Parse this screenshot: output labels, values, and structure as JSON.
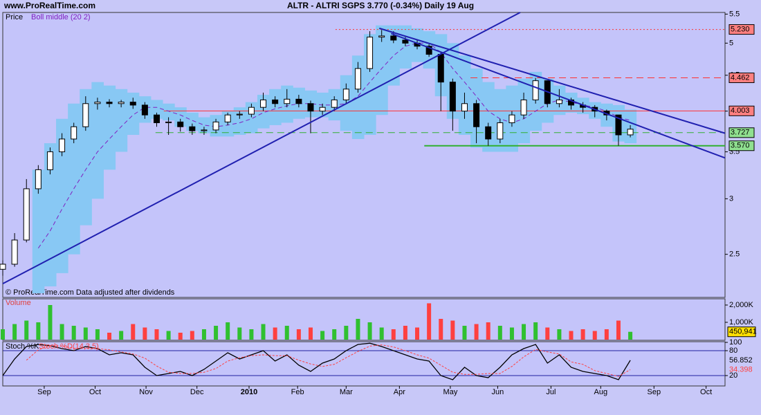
{
  "header": {
    "site": "www.ProRealTime.com",
    "footnote": "© ProRealTime.com Data adjusted after dividends"
  },
  "chart_data": [
    {
      "type": "candlestick",
      "title": "ALTR - ALTRI SGPS   3.770 (-0.34%)   Daily  19 Aug",
      "legend": [
        "Price",
        "Boll middle (20 2)"
      ],
      "log_scale": true,
      "ylim": [
        2.17,
        5.53
      ],
      "yticks": [
        2.5,
        3,
        3.5,
        4,
        4.5,
        5,
        5.5
      ],
      "x": [
        0,
        1,
        2,
        3,
        4,
        5,
        6,
        7,
        8,
        9,
        10,
        11,
        12,
        13,
        14,
        15,
        16,
        17,
        18,
        19,
        20,
        21,
        22,
        23,
        24,
        25,
        26,
        27,
        28,
        29,
        30,
        31,
        32,
        33,
        34,
        35,
        36,
        37,
        38,
        39,
        40,
        41,
        42,
        43,
        44,
        45,
        46,
        47,
        48,
        49,
        50,
        51,
        52,
        53
      ],
      "open": [
        2.38,
        2.42,
        2.62,
        3.1,
        3.3,
        3.5,
        3.65,
        3.8,
        4.1,
        4.12,
        4.1,
        4.12,
        4.08,
        3.95,
        3.85,
        3.86,
        3.8,
        3.75,
        3.76,
        3.86,
        3.95,
        3.96,
        4.05,
        4.15,
        4.1,
        4.16,
        4.1,
        4.0,
        4.05,
        4.15,
        4.3,
        4.6,
        5.1,
        5.12,
        5.05,
        5.0,
        4.95,
        4.82,
        4.4,
        4.0,
        4.1,
        3.8,
        3.65,
        3.85,
        3.95,
        4.15,
        4.42,
        4.1,
        4.15,
        4.08,
        4.05,
        4.0,
        3.95,
        3.7
      ],
      "high": [
        2.45,
        2.68,
        3.2,
        3.35,
        3.55,
        3.72,
        3.85,
        4.2,
        4.18,
        4.16,
        4.15,
        4.18,
        4.12,
        3.98,
        3.92,
        3.9,
        3.84,
        3.8,
        3.9,
        3.98,
        4.0,
        4.1,
        4.25,
        4.2,
        4.3,
        4.22,
        4.14,
        4.1,
        4.2,
        4.38,
        4.7,
        5.2,
        5.22,
        5.2,
        5.1,
        5.05,
        4.98,
        4.85,
        4.45,
        4.25,
        4.15,
        3.85,
        3.9,
        4.0,
        4.25,
        4.46,
        4.4,
        4.3,
        4.18,
        4.12,
        4.08,
        4.02,
        3.95,
        3.82
      ],
      "low": [
        2.33,
        2.4,
        2.6,
        3.05,
        3.25,
        3.45,
        3.6,
        3.75,
        4.02,
        4.05,
        4.05,
        4.03,
        3.9,
        3.8,
        3.7,
        3.74,
        3.7,
        3.7,
        3.72,
        3.82,
        3.9,
        3.92,
        4.0,
        4.05,
        4.05,
        4.05,
        3.72,
        3.95,
        4.0,
        4.1,
        4.25,
        4.55,
        5.02,
        5.0,
        4.95,
        4.9,
        4.78,
        4.0,
        3.75,
        3.9,
        3.6,
        3.57,
        3.6,
        3.8,
        3.9,
        4.1,
        4.05,
        4.05,
        4.02,
        3.98,
        3.92,
        3.88,
        3.57,
        3.67
      ],
      "close": [
        2.42,
        2.62,
        3.1,
        3.3,
        3.5,
        3.65,
        3.8,
        4.1,
        4.12,
        4.1,
        4.12,
        4.08,
        3.95,
        3.85,
        3.86,
        3.8,
        3.75,
        3.76,
        3.86,
        3.95,
        3.96,
        4.05,
        4.15,
        4.1,
        4.16,
        4.1,
        4.0,
        4.05,
        4.15,
        4.3,
        4.6,
        5.1,
        5.12,
        5.05,
        5.0,
        4.95,
        4.82,
        4.4,
        4.0,
        4.1,
        3.8,
        3.65,
        3.85,
        3.95,
        4.15,
        4.42,
        4.1,
        4.15,
        4.08,
        4.05,
        4.0,
        3.95,
        3.7,
        3.77
      ],
      "boll_upper": [
        null,
        null,
        null,
        3.3,
        3.6,
        3.9,
        4.1,
        4.3,
        4.4,
        4.35,
        4.3,
        4.25,
        4.2,
        4.15,
        4.1,
        4.05,
        3.98,
        3.92,
        3.95,
        4.0,
        4.05,
        4.12,
        4.22,
        4.3,
        4.35,
        4.32,
        4.28,
        4.25,
        4.3,
        4.5,
        4.8,
        5.15,
        5.3,
        5.3,
        5.3,
        5.25,
        5.2,
        5.15,
        5.0,
        4.8,
        4.6,
        4.4,
        4.3,
        4.35,
        4.45,
        4.55,
        4.45,
        4.35,
        4.25,
        4.18,
        4.12,
        4.1,
        4.08,
        4.02
      ],
      "boll_middle": [
        null,
        null,
        null,
        2.55,
        2.7,
        2.9,
        3.1,
        3.3,
        3.5,
        3.65,
        3.8,
        3.95,
        4.05,
        4.05,
        4.0,
        3.95,
        3.88,
        3.82,
        3.8,
        3.82,
        3.85,
        3.9,
        3.98,
        4.03,
        4.07,
        4.1,
        4.1,
        4.08,
        4.08,
        4.1,
        4.2,
        4.4,
        4.6,
        4.8,
        4.95,
        5.0,
        5.0,
        4.85,
        4.6,
        4.4,
        4.2,
        4.0,
        3.9,
        3.85,
        3.9,
        4.0,
        4.1,
        4.15,
        4.12,
        4.08,
        4.05,
        4.0,
        3.92,
        3.88
      ],
      "boll_lower": [
        null,
        null,
        null,
        2.2,
        2.25,
        2.35,
        2.5,
        2.75,
        3.0,
        3.3,
        3.5,
        3.7,
        3.85,
        3.9,
        3.88,
        3.8,
        3.75,
        3.72,
        3.68,
        3.68,
        3.7,
        3.72,
        3.78,
        3.82,
        3.85,
        3.9,
        3.92,
        3.92,
        3.88,
        3.75,
        3.65,
        3.7,
        3.95,
        4.35,
        4.6,
        4.7,
        4.6,
        4.2,
        3.9,
        3.7,
        3.55,
        3.5,
        3.5,
        3.5,
        3.6,
        3.75,
        3.85,
        3.95,
        3.98,
        3.96,
        3.9,
        3.8,
        3.62,
        3.6
      ],
      "levels": [
        {
          "value": 5.23,
          "label": "5.230",
          "color": "#ff3030",
          "style": "dotted",
          "from": 28.1
        },
        {
          "value": 4.462,
          "label": "4.462",
          "color": "#ff3030",
          "style": "dashed",
          "from": 39.5
        },
        {
          "value": 4.003,
          "label": "4.003",
          "color": "#ff3030",
          "style": "solid",
          "from": 13.6
        },
        {
          "value": 3.727,
          "label": "3.727",
          "color": "#30b030",
          "style": "dashed",
          "from": 12.9
        },
        {
          "value": 3.57,
          "label": "3.570",
          "color": "#30b030",
          "style": "solid",
          "from": 35.6
        }
      ],
      "trendlines": [
        {
          "x": [
            0,
            43.7
          ],
          "y": [
            2.27,
            5.53
          ]
        },
        {
          "x": [
            32.8,
            61
          ],
          "y": [
            5.16,
            3.43
          ]
        },
        {
          "x": [
            31.8,
            61
          ],
          "y": [
            5.25,
            3.72
          ]
        }
      ]
    },
    {
      "type": "bar",
      "legend": [
        "Volume"
      ],
      "ylim": [
        0,
        2360000
      ],
      "yticks": [
        {
          "value": 1000000,
          "label": "1,000K"
        },
        {
          "value": 2000000,
          "label": "2,000K"
        }
      ],
      "values": [
        600000,
        900000,
        1100000,
        1000000,
        2000000,
        900000,
        800000,
        700000,
        600000,
        400000,
        500000,
        900000,
        700000,
        600000,
        500000,
        400000,
        500000,
        600000,
        800000,
        1000000,
        700000,
        600000,
        900000,
        700000,
        800000,
        600000,
        700000,
        500000,
        600000,
        800000,
        1200000,
        1000000,
        700000,
        600000,
        800000,
        700000,
        2100000,
        1200000,
        1100000,
        800000,
        900000,
        1000000,
        800000,
        700000,
        900000,
        1000000,
        700000,
        600000,
        500000,
        600000,
        500000,
        600000,
        1100000,
        450941
      ],
      "last_value_label": "450,941",
      "colors": [
        "#30c030",
        "#ff4040"
      ]
    },
    {
      "type": "line",
      "ylim": [
        0,
        100
      ],
      "yticks": [
        20,
        80,
        100
      ],
      "xlim": [
        0,
        61
      ],
      "xticks": [
        {
          "value": 3.5,
          "label": "Sep"
        },
        {
          "value": 7.8,
          "label": "Oct"
        },
        {
          "value": 12.1,
          "label": "Nov"
        },
        {
          "value": 16.4,
          "label": "Dec"
        },
        {
          "value": 20.8,
          "label": "2010"
        },
        {
          "value": 24.9,
          "label": "Feb"
        },
        {
          "value": 29,
          "label": "Mar"
        },
        {
          "value": 33.5,
          "label": "Apr"
        },
        {
          "value": 37.8,
          "label": "May"
        },
        {
          "value": 41.8,
          "label": "Jun"
        },
        {
          "value": 46.3,
          "label": "Jul"
        },
        {
          "value": 50.5,
          "label": "Aug"
        },
        {
          "value": 55,
          "label": "Sep"
        },
        {
          "value": 59.4,
          "label": "Oct"
        }
      ],
      "series": [
        {
          "name": "Stoch %K",
          "color": "#000000",
          "values": [
            20,
            60,
            90,
            95,
            92,
            85,
            80,
            90,
            85,
            70,
            75,
            70,
            40,
            20,
            25,
            30,
            20,
            35,
            55,
            75,
            60,
            70,
            80,
            55,
            70,
            45,
            30,
            50,
            60,
            80,
            95,
            98,
            90,
            80,
            70,
            60,
            55,
            20,
            10,
            40,
            20,
            15,
            40,
            70,
            85,
            95,
            50,
            70,
            40,
            30,
            25,
            20,
            10,
            56.852
          ]
        },
        {
          "name": "Stoch %D(14,3,5)",
          "color": "#ff4040",
          "values": [
            null,
            null,
            57,
            82,
            92,
            91,
            86,
            85,
            85,
            82,
            77,
            72,
            62,
            43,
            28,
            25,
            25,
            28,
            37,
            55,
            63,
            68,
            70,
            68,
            68,
            57,
            48,
            42,
            47,
            63,
            78,
            91,
            94,
            89,
            80,
            70,
            62,
            45,
            28,
            23,
            23,
            25,
            25,
            42,
            65,
            83,
            77,
            72,
            53,
            47,
            32,
            25,
            18,
            34.398
          ]
        }
      ]
    }
  ]
}
